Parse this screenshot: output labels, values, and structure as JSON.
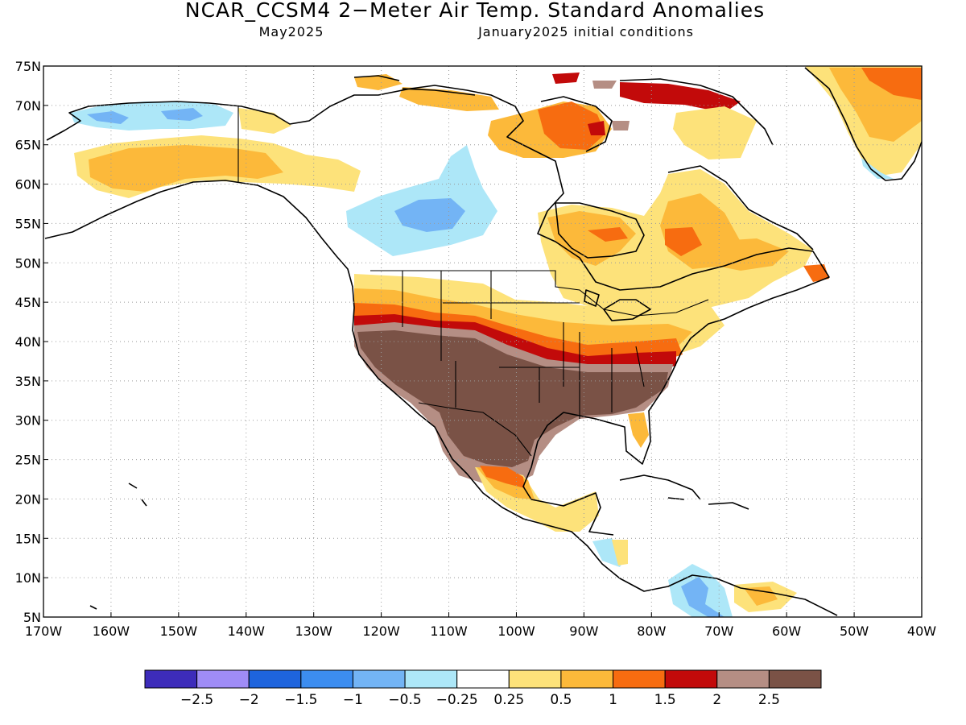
{
  "title": "NCAR_CCSM4 2−Meter Air Temp. Standard Anomalies",
  "subtitle_left": "May2025",
  "subtitle_right": "January2025 initial conditions",
  "map": {
    "lon_range": [
      -170,
      -40
    ],
    "lat_range": [
      5,
      75
    ],
    "lat_labels": [
      "75N",
      "70N",
      "65N",
      "60N",
      "55N",
      "50N",
      "45N",
      "40N",
      "35N",
      "30N",
      "25N",
      "20N",
      "15N",
      "10N",
      "5N"
    ],
    "lon_labels": [
      "170W",
      "160W",
      "150W",
      "140W",
      "130W",
      "120W",
      "110W",
      "100W",
      "90W",
      "80W",
      "70W",
      "60W",
      "50W",
      "40W"
    ],
    "grid": "dotted"
  },
  "colorbar": {
    "colors": [
      "#3d2cba",
      "#9f8cf6",
      "#1e64dd",
      "#3c8df0",
      "#73b4f5",
      "#ade7f8",
      "#ffffff",
      "#fde27a",
      "#fcb93a",
      "#f76c10",
      "#c20a0a",
      "#b58e84",
      "#7a5246"
    ],
    "labels": [
      "−2.5",
      "−2",
      "−1.5",
      "−1",
      "−0.5",
      "−0.25",
      "0.25",
      "0.5",
      "1",
      "1.5",
      "2",
      "2.5"
    ]
  },
  "anomaly_regions": [
    {
      "name": "southwest-us-mexico",
      "category": "2.5+",
      "color": "#7a5246"
    },
    {
      "name": "central-us-band",
      "category": "1.5–2",
      "color": "#c20a0a"
    },
    {
      "name": "east-canada",
      "category": "0.5–1.5",
      "color": "#fcb93a"
    },
    {
      "name": "alaska",
      "category": "0.5–1",
      "color": "#fcb93a"
    },
    {
      "name": "north-alaska",
      "category": "−1 to −0.25",
      "color": "#73b4f5"
    },
    {
      "name": "western-canada",
      "category": "−1 to −0.25",
      "color": "#ade7f8"
    },
    {
      "name": "greenland",
      "category": "1–1.5",
      "color": "#f76c10"
    },
    {
      "name": "colombia",
      "category": "−1 to −0.25",
      "color": "#73b4f5"
    }
  ]
}
